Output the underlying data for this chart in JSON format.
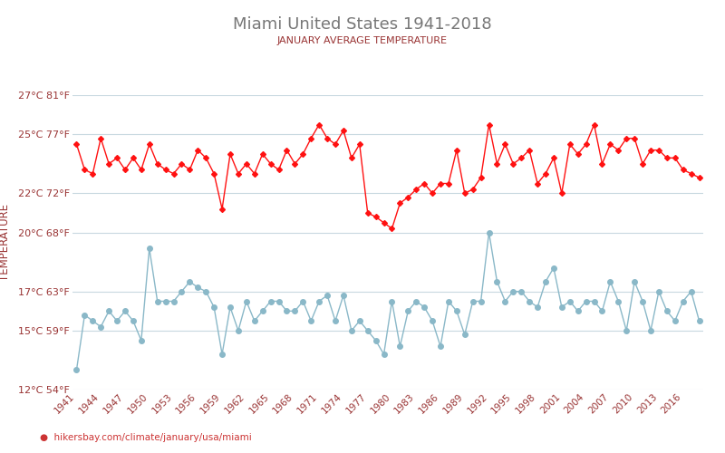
{
  "title": "Miami United States 1941-2018",
  "subtitle": "JANUARY AVERAGE TEMPERATURE",
  "ylabel": "TEMPERATURE",
  "xlabel_url": "hikersbay.com/climate/january/usa/miami",
  "ylim": [
    12,
    27
  ],
  "yticks_c": [
    12,
    15,
    17,
    20,
    22,
    25,
    27
  ],
  "ytick_labels": [
    "12°C 54°F",
    "15°C 59°F",
    "17°C 63°F",
    "20°C 68°F",
    "22°C 72°F",
    "25°C 77°F",
    "27°C 81°F"
  ],
  "xtick_years": [
    1941,
    1944,
    1947,
    1950,
    1953,
    1956,
    1959,
    1962,
    1965,
    1968,
    1971,
    1974,
    1977,
    1980,
    1983,
    1986,
    1989,
    1992,
    1995,
    1998,
    2001,
    2004,
    2007,
    2010,
    2013,
    2016
  ],
  "years": [
    1941,
    1942,
    1943,
    1944,
    1945,
    1946,
    1947,
    1948,
    1949,
    1950,
    1951,
    1952,
    1953,
    1954,
    1955,
    1956,
    1957,
    1958,
    1959,
    1960,
    1961,
    1962,
    1963,
    1964,
    1965,
    1966,
    1967,
    1968,
    1969,
    1970,
    1971,
    1972,
    1973,
    1974,
    1975,
    1976,
    1977,
    1978,
    1979,
    1980,
    1981,
    1982,
    1983,
    1984,
    1985,
    1986,
    1987,
    1988,
    1989,
    1990,
    1991,
    1992,
    1993,
    1994,
    1995,
    1996,
    1997,
    1998,
    1999,
    2000,
    2001,
    2002,
    2003,
    2004,
    2005,
    2006,
    2007,
    2008,
    2009,
    2010,
    2011,
    2012,
    2013,
    2014,
    2015,
    2016,
    2017,
    2018
  ],
  "day_temps": [
    24.5,
    23.2,
    23.0,
    24.8,
    23.5,
    23.8,
    23.2,
    23.8,
    23.2,
    24.5,
    23.5,
    23.2,
    23.0,
    23.5,
    23.2,
    24.2,
    23.8,
    23.0,
    21.2,
    24.0,
    23.0,
    23.5,
    23.0,
    24.0,
    23.5,
    23.2,
    24.2,
    23.5,
    24.0,
    24.8,
    25.5,
    24.8,
    24.5,
    25.2,
    23.8,
    24.5,
    21.0,
    20.8,
    20.5,
    20.2,
    21.5,
    21.8,
    22.2,
    22.5,
    22.0,
    22.5,
    22.5,
    24.2,
    22.0,
    22.2,
    22.8,
    25.5,
    23.5,
    24.5,
    23.5,
    23.8,
    24.2,
    22.5,
    23.0,
    23.8,
    22.0,
    24.5,
    24.0,
    24.5,
    25.5,
    23.5,
    24.5,
    24.2,
    24.8,
    24.8,
    23.5,
    24.2,
    24.2,
    23.8,
    23.8,
    23.2,
    23.0,
    22.8
  ],
  "night_temps": [
    13.0,
    15.8,
    15.5,
    15.2,
    16.0,
    15.5,
    16.0,
    15.5,
    14.5,
    19.2,
    16.5,
    16.5,
    16.5,
    17.0,
    17.5,
    17.2,
    17.0,
    16.2,
    13.8,
    16.2,
    15.0,
    16.5,
    15.5,
    16.0,
    16.5,
    16.5,
    16.0,
    16.0,
    16.5,
    15.5,
    16.5,
    16.8,
    15.5,
    16.8,
    15.0,
    15.5,
    15.0,
    14.5,
    13.8,
    16.5,
    14.2,
    16.0,
    16.5,
    16.2,
    15.5,
    14.2,
    16.5,
    16.0,
    14.8,
    16.5,
    16.5,
    20.0,
    17.5,
    16.5,
    17.0,
    17.0,
    16.5,
    16.2,
    17.5,
    18.2,
    16.2,
    16.5,
    16.0,
    16.5,
    16.5,
    16.0,
    17.5,
    16.5,
    15.0,
    17.5,
    16.5,
    15.0,
    17.0,
    16.0,
    15.5,
    16.5,
    17.0,
    15.5
  ],
  "day_color": "#ff1111",
  "night_color": "#8ab8c8",
  "bg_color": "#ffffff",
  "grid_color": "#c8d8e0",
  "title_color": "#777777",
  "subtitle_color": "#993333",
  "ylabel_color": "#993333",
  "ytick_color": "#993333",
  "xtick_color": "#993333",
  "url_color": "#cc3333"
}
